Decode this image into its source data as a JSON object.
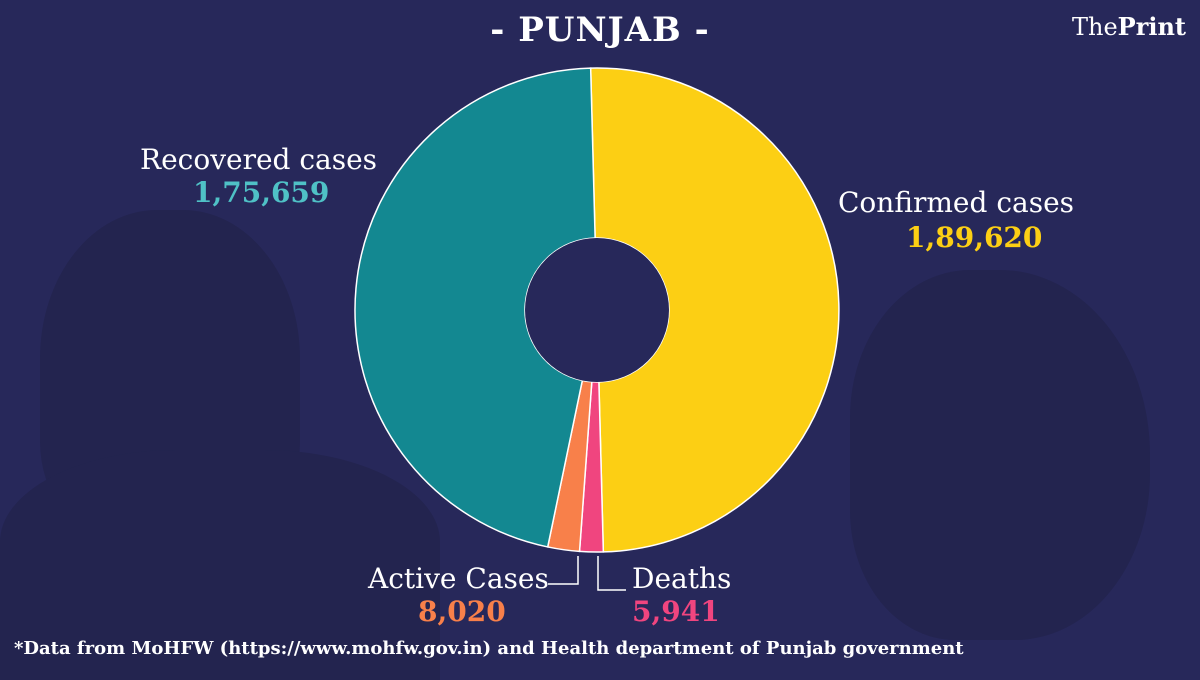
{
  "title": "- PUNJAB -",
  "logo": {
    "part1": "The",
    "part2": "Print"
  },
  "footnote": "*Data from MoHFW (https://www.mohfw.gov.in)  and Health department of  Punjab government",
  "chart_data": {
    "type": "pie",
    "style": "donut",
    "title": "- PUNJAB -",
    "slices": [
      {
        "label": "Confirmed cases",
        "value": 189620,
        "display": "1,89,620",
        "color": "#fccf14"
      },
      {
        "label": "Deaths",
        "value": 5941,
        "display": "5,941",
        "color": "#f0457f"
      },
      {
        "label": "Active Cases",
        "value": 8020,
        "display": "8,020",
        "color": "#f8804a"
      },
      {
        "label": "Recovered cases",
        "value": 175659,
        "display": "1,75,659",
        "color": "#138891"
      }
    ]
  }
}
